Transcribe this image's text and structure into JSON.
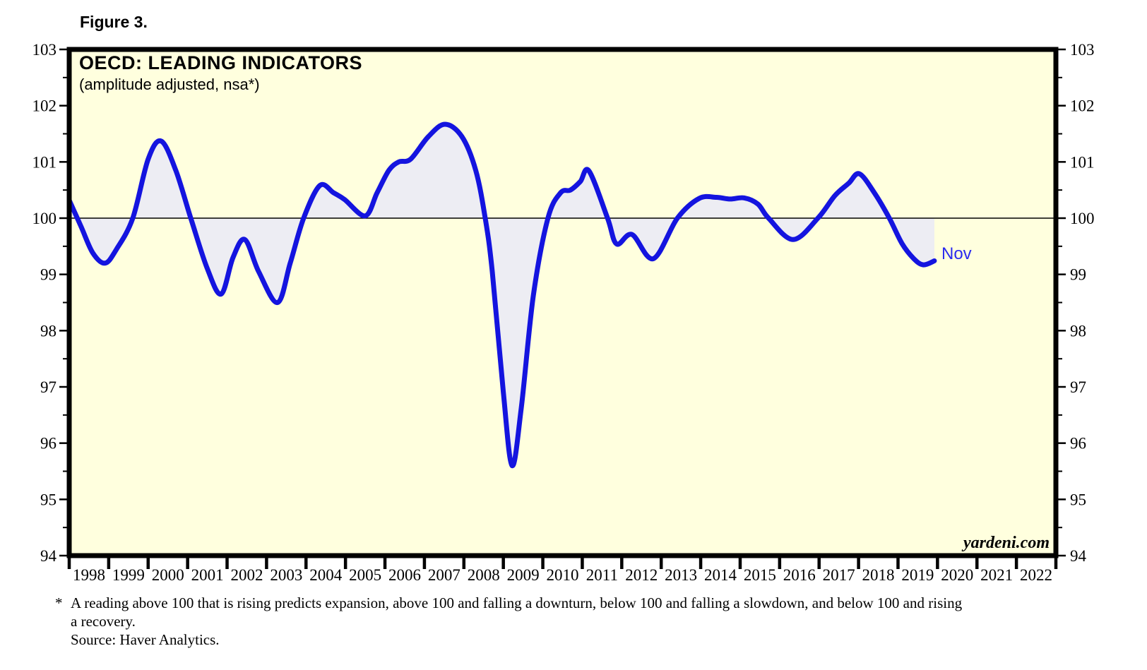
{
  "figure_label": "Figure 3.",
  "chart": {
    "colors": {
      "plot_background": "#FFFFDE",
      "fill_area": "#EDEDF3",
      "line": "#1414DF",
      "annotation": "#2A2AEF",
      "axis": "#000000"
    }
  },
  "chart_data": {
    "type": "line",
    "title": "OECD: LEADING INDICATORS",
    "subtitle": "(amplitude adjusted, nsa*)",
    "watermark": "yardeni.com",
    "series": [
      {
        "name": "OECD leading indicators (amplitude adjusted, nsa)",
        "last_point_label": "Nov",
        "points": [
          [
            1998.0,
            100.32
          ],
          [
            1998.3,
            99.85
          ],
          [
            1998.6,
            99.38
          ],
          [
            1998.91,
            99.2
          ],
          [
            1999.2,
            99.45
          ],
          [
            1999.61,
            100.0
          ],
          [
            2000.0,
            101.05
          ],
          [
            2000.33,
            101.37
          ],
          [
            2000.7,
            100.85
          ],
          [
            2001.08,
            100.0
          ],
          [
            2001.5,
            99.1
          ],
          [
            2001.85,
            98.65
          ],
          [
            2002.15,
            99.3
          ],
          [
            2002.45,
            99.62
          ],
          [
            2002.8,
            99.05
          ],
          [
            2003.28,
            98.5
          ],
          [
            2003.6,
            99.2
          ],
          [
            2003.94,
            100.0
          ],
          [
            2004.35,
            100.58
          ],
          [
            2004.7,
            100.45
          ],
          [
            2004.98,
            100.33
          ],
          [
            2005.5,
            100.04
          ],
          [
            2005.8,
            100.45
          ],
          [
            2006.1,
            100.85
          ],
          [
            2006.35,
            101.0
          ],
          [
            2006.65,
            101.05
          ],
          [
            2007.1,
            101.45
          ],
          [
            2007.52,
            101.67
          ],
          [
            2007.95,
            101.45
          ],
          [
            2008.3,
            100.85
          ],
          [
            2008.54,
            100.0
          ],
          [
            2008.72,
            99.05
          ],
          [
            2009.0,
            96.9
          ],
          [
            2009.22,
            95.6
          ],
          [
            2009.45,
            96.6
          ],
          [
            2009.76,
            98.62
          ],
          [
            2010.13,
            100.0
          ],
          [
            2010.45,
            100.45
          ],
          [
            2010.7,
            100.5
          ],
          [
            2010.95,
            100.65
          ],
          [
            2011.17,
            100.84
          ],
          [
            2011.64,
            100.0
          ],
          [
            2011.87,
            99.54
          ],
          [
            2012.26,
            99.71
          ],
          [
            2012.8,
            99.28
          ],
          [
            2013.41,
            100.0
          ],
          [
            2013.96,
            100.35
          ],
          [
            2014.4,
            100.37
          ],
          [
            2014.75,
            100.34
          ],
          [
            2015.1,
            100.36
          ],
          [
            2015.45,
            100.25
          ],
          [
            2015.72,
            100.0
          ],
          [
            2016.34,
            99.62
          ],
          [
            2016.97,
            100.0
          ],
          [
            2017.4,
            100.4
          ],
          [
            2017.75,
            100.62
          ],
          [
            2018.02,
            100.79
          ],
          [
            2018.4,
            100.45
          ],
          [
            2018.78,
            100.0
          ],
          [
            2019.1,
            99.55
          ],
          [
            2019.4,
            99.28
          ],
          [
            2019.64,
            99.17
          ],
          [
            2019.92,
            99.24
          ]
        ]
      }
    ],
    "baseline": 100,
    "fill_between_line_and_baseline": true,
    "xlim": [
      1998,
      2023
    ],
    "ylim": [
      94,
      103
    ],
    "x_tick_labels": [
      "1998",
      "1999",
      "2000",
      "2001",
      "2002",
      "2003",
      "2004",
      "2005",
      "2006",
      "2007",
      "2008",
      "2009",
      "2010",
      "2011",
      "2012",
      "2013",
      "2014",
      "2015",
      "2016",
      "2017",
      "2018",
      "2019",
      "2020",
      "2021",
      "2022"
    ],
    "y_ticks": [
      94,
      95,
      96,
      97,
      98,
      99,
      100,
      101,
      102,
      103
    ],
    "y_minor_tick_step": 0.5,
    "y_axis_labels_both_sides": true,
    "grid": "baseline-only",
    "legend_position": "none",
    "annotations": [
      {
        "text": "Nov",
        "x": 2020.1,
        "y": 99.22
      }
    ]
  },
  "footnote": {
    "marker": "*",
    "line1": "A reading above 100 that is rising predicts expansion, above 100 and falling a downturn, below 100 and falling a slowdown, and below 100 and rising",
    "line2": "a recovery.",
    "source": "Source: Haver Analytics."
  }
}
